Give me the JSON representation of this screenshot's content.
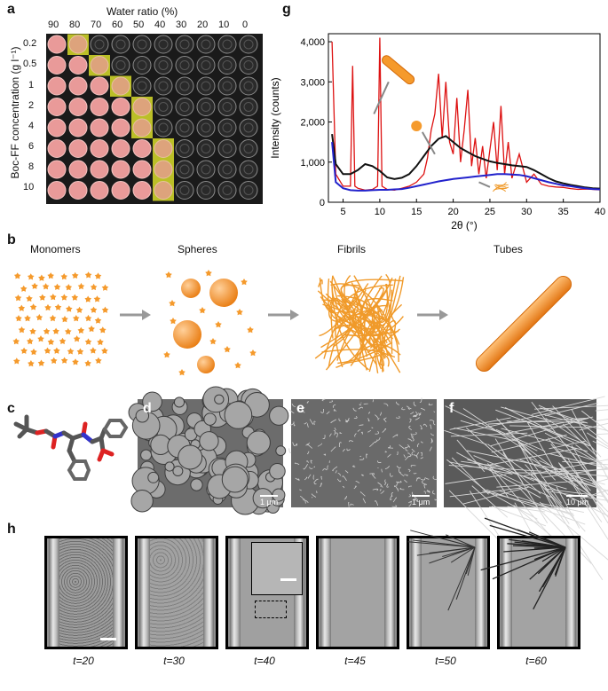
{
  "panels": {
    "a": "a",
    "b": "b",
    "c": "c",
    "d": "d",
    "e": "e",
    "f": "f",
    "g": "g",
    "h": "h"
  },
  "panel_a": {
    "x_title": "Water ratio (%)",
    "y_title": "Boc-FF concentration (g l⁻¹)",
    "columns": [
      "90",
      "80",
      "70",
      "60",
      "50",
      "40",
      "30",
      "20",
      "10",
      "0"
    ],
    "rows": [
      "0.2",
      "0.5",
      "1",
      "2",
      "4",
      "6",
      "8",
      "10"
    ],
    "highlight_color": "#d8dd2a",
    "gel_color": "#e99a99"
  },
  "panel_b": {
    "stages": [
      "Monomers",
      "Spheres",
      "Fibrils",
      "Tubes"
    ],
    "accent": "#f59a2c"
  },
  "panel_d_scale": "1 μm",
  "panel_e_scale": "1 μm",
  "panel_f_scale": "10 μm",
  "panel_h": {
    "times": [
      "t=20",
      "t=30",
      "t=40",
      "t=45",
      "t=50",
      "t=60"
    ]
  },
  "chart_data": {
    "type": "line",
    "xlabel": "2θ (°)",
    "ylabel": "Intensity (counts)",
    "xlim": [
      3,
      40
    ],
    "ylim": [
      0,
      4200
    ],
    "xticks": [
      5,
      10,
      15,
      20,
      25,
      30,
      35,
      40
    ],
    "yticks": [
      0,
      1000,
      2000,
      3000,
      4000
    ],
    "ytick_labels": [
      "0",
      "1,000",
      "2,000",
      "3,000",
      "4,000"
    ],
    "series": [
      {
        "color": "#111111",
        "x": [
          3.5,
          4,
          5,
          6,
          7,
          8,
          9,
          10,
          11,
          12,
          13,
          14,
          15,
          16,
          17,
          18,
          19,
          20,
          21,
          22,
          23,
          24,
          25,
          26,
          27,
          28,
          29,
          30,
          31,
          32,
          33,
          34,
          35,
          36,
          37,
          38,
          39,
          40
        ],
        "y": [
          1700,
          950,
          700,
          700,
          800,
          950,
          900,
          780,
          620,
          580,
          610,
          700,
          900,
          1150,
          1400,
          1580,
          1650,
          1500,
          1350,
          1250,
          1150,
          1080,
          1020,
          980,
          950,
          920,
          900,
          880,
          800,
          700,
          600,
          520,
          470,
          430,
          400,
          370,
          350,
          340
        ]
      },
      {
        "color": "#2222cc",
        "x": [
          3.5,
          4,
          5,
          6,
          7,
          8,
          9,
          10,
          11,
          12,
          13,
          14,
          15,
          16,
          17,
          18,
          19,
          20,
          21,
          22,
          23,
          24,
          25,
          26,
          27,
          28,
          29,
          30,
          31,
          32,
          33,
          34,
          35,
          36,
          37,
          38,
          39,
          40
        ],
        "y": [
          1500,
          500,
          350,
          300,
          290,
          290,
          300,
          310,
          310,
          320,
          330,
          360,
          400,
          440,
          480,
          520,
          550,
          580,
          600,
          620,
          640,
          660,
          680,
          700,
          700,
          690,
          680,
          650,
          600,
          550,
          500,
          460,
          420,
          400,
          370,
          350,
          330,
          320
        ]
      },
      {
        "color": "#dd1111",
        "x": [
          3.5,
          4,
          5,
          6,
          6.3,
          6.6,
          7,
          8,
          9,
          9.7,
          10,
          10.3,
          11,
          12,
          13,
          14,
          15,
          16,
          16.5,
          17,
          17.5,
          18,
          18.5,
          19,
          19.5,
          20,
          20.5,
          21,
          21.5,
          22,
          22.5,
          23,
          23.5,
          24,
          24.5,
          25,
          25.5,
          26,
          26.5,
          27,
          27.5,
          28,
          29,
          30,
          31,
          32,
          33,
          34,
          35,
          36,
          37,
          38,
          39,
          40
        ],
        "y": [
          4000,
          700,
          400,
          400,
          3400,
          400,
          350,
          300,
          320,
          400,
          4100,
          400,
          320,
          300,
          350,
          400,
          500,
          700,
          1100,
          1800,
          2200,
          3200,
          1600,
          3000,
          1500,
          1200,
          2600,
          1000,
          1800,
          2800,
          900,
          1600,
          700,
          1400,
          600,
          1300,
          2000,
          800,
          2400,
          700,
          1500,
          600,
          1200,
          500,
          700,
          450,
          400,
          380,
          370,
          340,
          320,
          330,
          320,
          310
        ]
      }
    ]
  }
}
